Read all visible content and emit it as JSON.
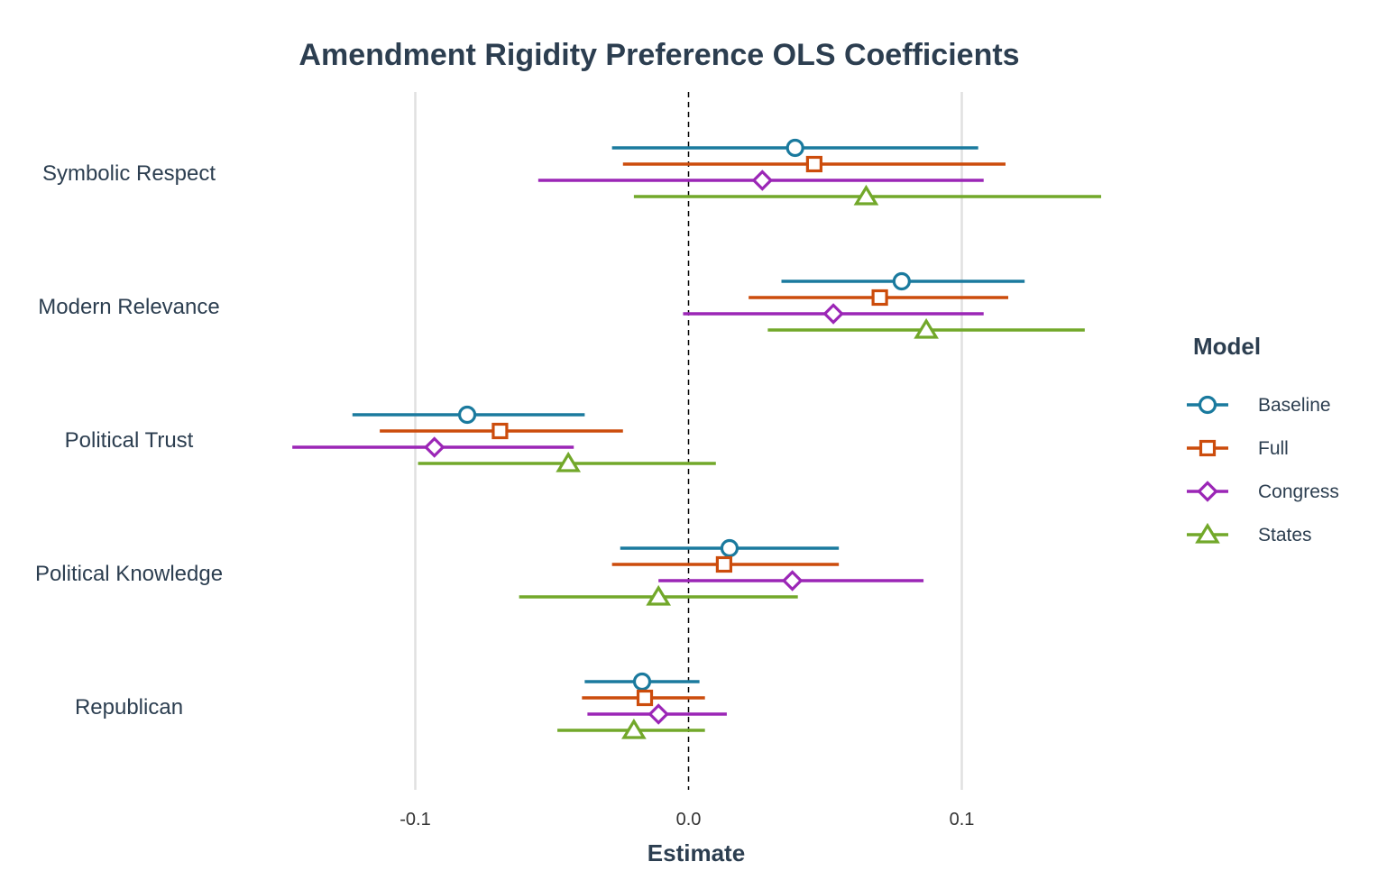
{
  "chart_data": {
    "type": "scatter",
    "subtype": "coefficient-plot",
    "title": "Amendment Rigidity Preference OLS Coefficients",
    "xlabel": "Estimate",
    "ylabel": "",
    "xlim": [
      -0.1,
      0.1
    ],
    "x_ticks": [
      -0.1,
      0.0,
      0.1
    ],
    "x_tick_labels": [
      "-0.1",
      "0.0",
      "0.1"
    ],
    "reference_line": 0,
    "grid": true,
    "legend": {
      "title": "Model",
      "position": "right"
    },
    "categories": [
      "Symbolic Respect",
      "Modern Relevance",
      "Political Trust",
      "Political Knowledge",
      "Republican"
    ],
    "series": [
      {
        "name": "Baseline",
        "color": "#1a7a9e",
        "marker": "circle",
        "estimates": [
          0.039,
          0.078,
          -0.081,
          0.015,
          -0.017
        ],
        "ci_low": [
          -0.028,
          0.034,
          -0.123,
          -0.025,
          -0.038
        ],
        "ci_high": [
          0.106,
          0.123,
          -0.038,
          0.055,
          0.004
        ]
      },
      {
        "name": "Full",
        "color": "#cc4c0c",
        "marker": "square",
        "estimates": [
          0.046,
          0.07,
          -0.069,
          0.013,
          -0.016
        ],
        "ci_low": [
          -0.024,
          0.022,
          -0.113,
          -0.028,
          -0.039
        ],
        "ci_high": [
          0.116,
          0.117,
          -0.024,
          0.055,
          0.006
        ]
      },
      {
        "name": "Congress",
        "color": "#9b26b6",
        "marker": "diamond",
        "estimates": [
          0.027,
          0.053,
          -0.093,
          0.038,
          -0.011
        ],
        "ci_low": [
          -0.055,
          -0.002,
          -0.145,
          -0.011,
          -0.037
        ],
        "ci_high": [
          0.108,
          0.108,
          -0.042,
          0.086,
          0.014
        ]
      },
      {
        "name": "States",
        "color": "#72a82a",
        "marker": "triangle",
        "estimates": [
          0.065,
          0.087,
          -0.044,
          -0.011,
          -0.02
        ],
        "ci_low": [
          -0.02,
          0.029,
          -0.099,
          -0.062,
          -0.048
        ],
        "ci_high": [
          0.151,
          0.145,
          0.01,
          0.04,
          0.006
        ]
      }
    ]
  }
}
